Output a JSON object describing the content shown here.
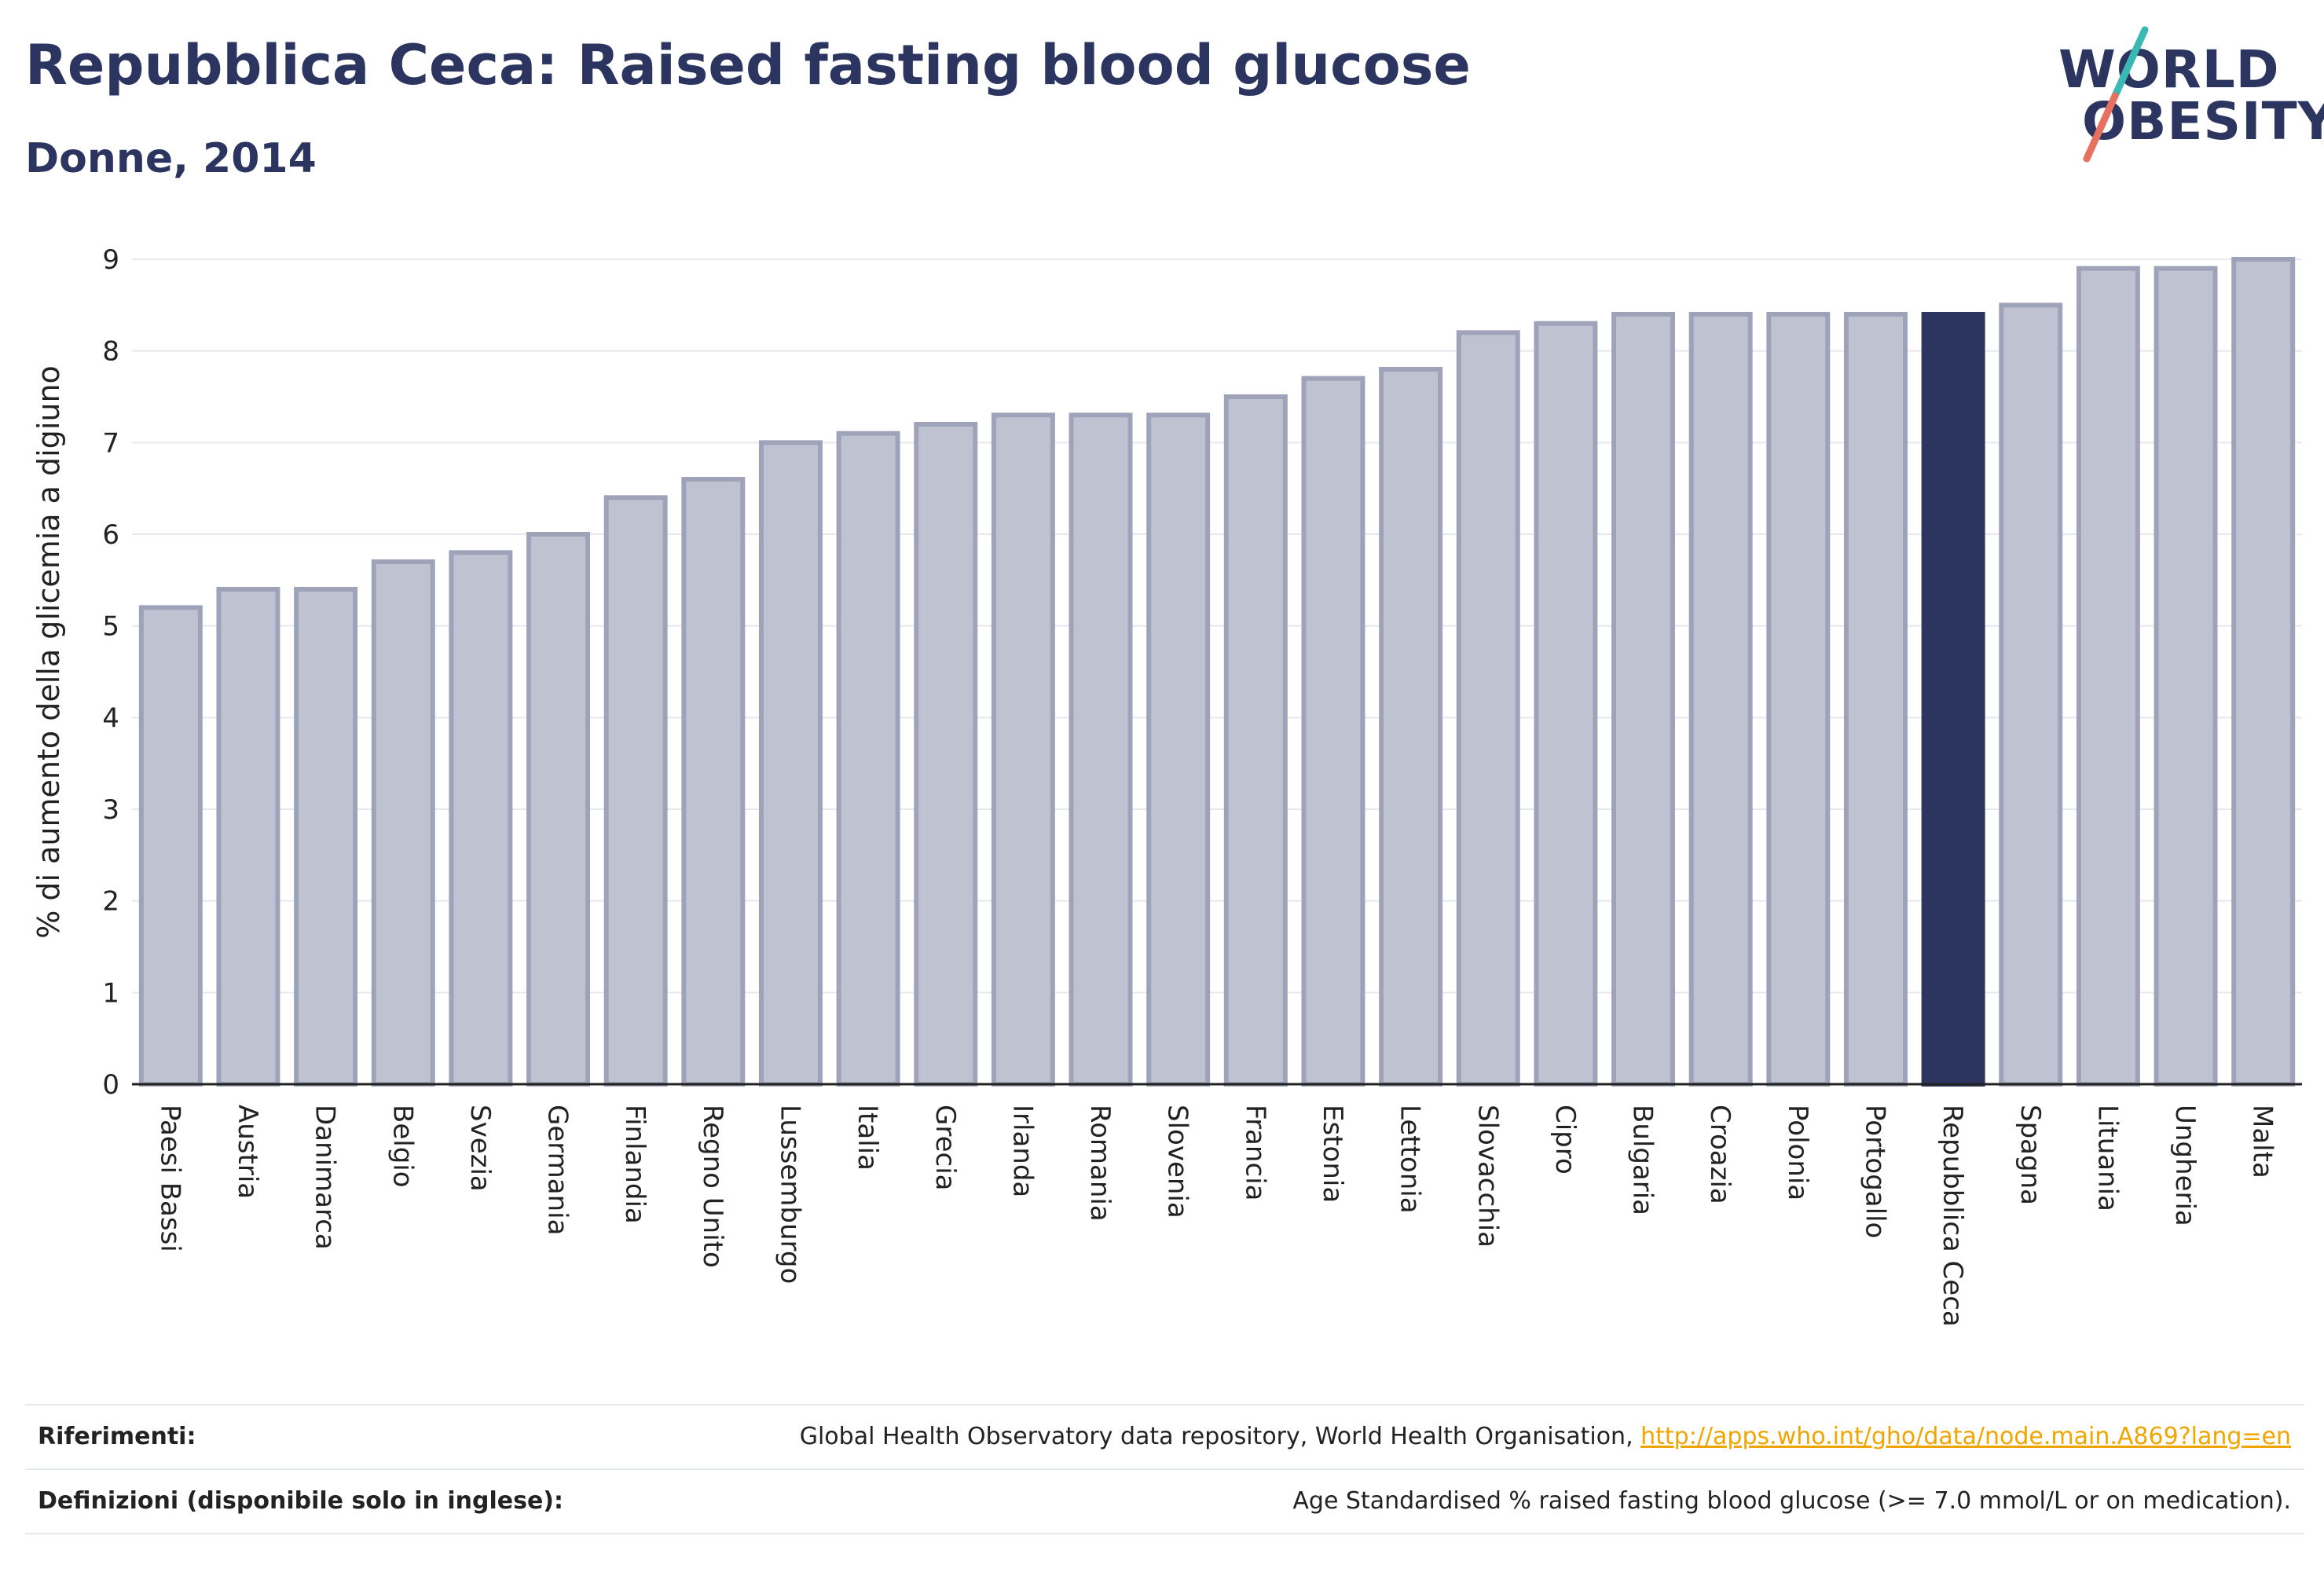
{
  "title": "Repubblica Ceca: Raised fasting blood glucose",
  "subtitle": "Donne, 2014",
  "logo": {
    "line1": "WORLD",
    "line2": "OBESITY"
  },
  "colors": {
    "bar": "#bfc2d0",
    "bar_border": "#9ea3ba",
    "highlight": "#2b3560",
    "accent_teal": "#3ab8b4",
    "accent_coral": "#e8705e",
    "link": "#f0a500"
  },
  "chart_data": {
    "type": "bar",
    "categories": [
      "Paesi Bassi",
      "Austria",
      "Danimarca",
      "Belgio",
      "Svezia",
      "Germania",
      "Finlandia",
      "Regno Unito",
      "Lussemburgo",
      "Italia",
      "Grecia",
      "Irlanda",
      "Romania",
      "Slovenia",
      "Francia",
      "Estonia",
      "Lettonia",
      "Slovacchia",
      "Cipro",
      "Bulgaria",
      "Croazia",
      "Polonia",
      "Portogallo",
      "Repubblica Ceca",
      "Spagna",
      "Lituania",
      "Ungheria",
      "Malta"
    ],
    "values": [
      5.2,
      5.4,
      5.4,
      5.7,
      5.8,
      6.0,
      6.4,
      6.6,
      7.0,
      7.1,
      7.2,
      7.3,
      7.3,
      7.3,
      7.5,
      7.7,
      7.8,
      8.2,
      8.3,
      8.4,
      8.4,
      8.4,
      8.4,
      8.4,
      8.5,
      8.9,
      8.9,
      9.0
    ],
    "highlight": "Repubblica Ceca",
    "ylabel": "% di aumento della glicemia a digiuno",
    "xlabel": "",
    "ylim": [
      0,
      9
    ],
    "yticks": [
      0,
      1,
      2,
      3,
      4,
      5,
      6,
      7,
      8,
      9
    ],
    "grid": true
  },
  "footer": {
    "references_label": "Riferimenti:",
    "references_text": "Global Health Observatory data repository, World Health Organisation, ",
    "references_link": "http://apps.who.int/gho/data/node.main.A869?lang=en",
    "definitions_label": "Definizioni (disponibile solo in inglese):",
    "definitions_text": "Age Standardised % raised fasting blood glucose (>= 7.0 mmol/L or on medication)."
  }
}
